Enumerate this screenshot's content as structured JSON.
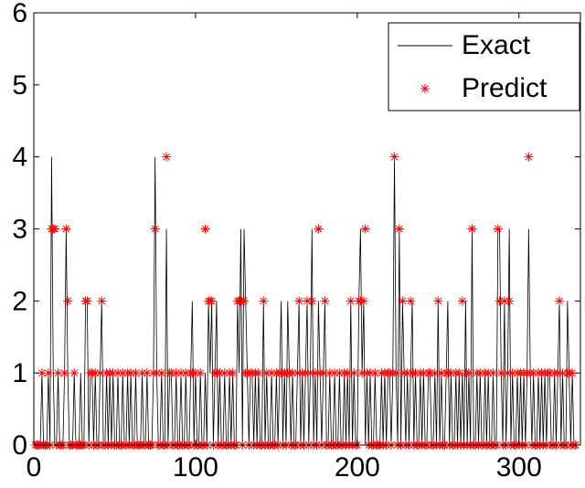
{
  "chart_data": {
    "type": "line-scatter",
    "x": [
      1,
      2,
      3,
      4,
      5,
      6,
      7,
      8,
      9,
      10,
      11,
      12,
      13,
      14,
      15,
      16,
      17,
      18,
      19,
      20,
      21,
      22,
      23,
      24,
      25,
      26,
      27,
      28,
      29,
      30,
      31,
      32,
      33,
      34,
      35,
      36,
      37,
      38,
      39,
      40,
      41,
      42,
      43,
      44,
      45,
      46,
      47,
      48,
      49,
      50,
      51,
      52,
      53,
      54,
      55,
      56,
      57,
      58,
      59,
      60,
      61,
      62,
      63,
      64,
      65,
      66,
      67,
      68,
      69,
      70,
      71,
      72,
      73,
      74,
      75,
      76,
      77,
      78,
      79,
      80,
      81,
      82,
      83,
      84,
      85,
      86,
      87,
      88,
      89,
      90,
      91,
      92,
      93,
      94,
      95,
      96,
      97,
      98,
      99,
      100,
      101,
      102,
      103,
      104,
      105,
      106,
      107,
      108,
      109,
      110,
      111,
      112,
      113,
      114,
      115,
      116,
      117,
      118,
      119,
      120,
      121,
      122,
      123,
      124,
      125,
      126,
      127,
      128,
      129,
      130,
      131,
      132,
      133,
      134,
      135,
      136,
      137,
      138,
      139,
      140,
      141,
      142,
      143,
      144,
      145,
      146,
      147,
      148,
      149,
      150,
      151,
      152,
      153,
      154,
      155,
      156,
      157,
      158,
      159,
      160,
      161,
      162,
      163,
      164,
      165,
      166,
      167,
      168,
      169,
      170,
      171,
      172,
      173,
      174,
      175,
      176,
      177,
      178,
      179,
      180,
      181,
      182,
      183,
      184,
      185,
      186,
      187,
      188,
      189,
      190,
      191,
      192,
      193,
      194,
      195,
      196,
      197,
      198,
      199,
      200,
      201,
      202,
      203,
      204,
      205,
      206,
      207,
      208,
      209,
      210,
      211,
      212,
      213,
      214,
      215,
      216,
      217,
      218,
      219,
      220,
      221,
      222,
      223,
      224,
      225,
      226,
      227,
      228,
      229,
      230,
      231,
      232,
      233,
      234,
      235,
      236,
      237,
      238,
      239,
      240,
      241,
      242,
      243,
      244,
      245,
      246,
      247,
      248,
      249,
      250,
      251,
      252,
      253,
      254,
      255,
      256,
      257,
      258,
      259,
      260,
      261,
      262,
      263,
      264,
      265,
      266,
      267,
      268,
      269,
      270,
      271,
      272,
      273,
      274,
      275,
      276,
      277,
      278,
      279,
      280,
      281,
      282,
      283,
      284,
      285,
      286,
      287,
      288,
      289,
      290,
      291,
      292,
      293,
      294,
      295,
      296,
      297,
      298,
      299,
      300,
      301,
      302,
      303,
      304,
      305,
      306,
      307,
      308,
      309,
      310,
      311,
      312,
      313,
      314,
      315,
      316,
      317,
      318,
      319,
      320,
      321,
      322,
      323,
      324,
      325,
      326,
      327,
      328,
      329,
      330,
      331,
      332,
      333,
      334,
      335
    ],
    "series": [
      {
        "name": "Exact",
        "color": "#000000",
        "style": "line",
        "values": [
          0,
          0,
          0,
          0,
          1,
          0,
          0,
          0,
          1,
          0,
          4,
          1,
          0,
          0,
          1,
          0,
          0,
          0,
          1,
          3,
          1,
          0,
          0,
          0,
          1,
          0,
          0,
          0,
          1,
          0,
          0,
          2,
          2,
          0,
          1,
          1,
          0,
          1,
          0,
          0,
          1,
          2,
          0,
          0,
          1,
          0,
          1,
          0,
          1,
          0,
          0,
          1,
          0,
          0,
          1,
          0,
          0,
          1,
          0,
          1,
          0,
          0,
          1,
          0,
          0,
          0,
          1,
          0,
          0,
          1,
          0,
          0,
          0,
          1,
          4,
          1,
          0,
          0,
          1,
          0,
          0,
          3,
          0,
          1,
          1,
          0,
          0,
          1,
          0,
          0,
          1,
          0,
          0,
          1,
          0,
          0,
          1,
          2,
          0,
          1,
          0,
          0,
          1,
          0,
          0,
          1,
          0,
          2,
          1,
          2,
          0,
          1,
          2,
          0,
          1,
          0,
          0,
          1,
          0,
          0,
          1,
          0,
          1,
          0,
          0,
          2,
          1,
          3,
          0,
          3,
          2,
          1,
          0,
          1,
          1,
          0,
          1,
          0,
          1,
          0,
          0,
          2,
          0,
          1,
          0,
          0,
          1,
          0,
          0,
          1,
          0,
          1,
          2,
          0,
          1,
          0,
          2,
          1,
          0,
          1,
          0,
          0,
          1,
          2,
          0,
          1,
          0,
          1,
          2,
          0,
          1,
          3,
          0,
          1,
          0,
          2,
          1,
          0,
          1,
          2,
          0,
          0,
          1,
          0,
          0,
          1,
          0,
          0,
          1,
          0,
          0,
          1,
          0,
          1,
          0,
          2,
          0,
          1,
          0,
          0,
          2,
          3,
          1,
          2,
          0,
          1,
          0,
          1,
          0,
          0,
          1,
          0,
          0,
          0,
          1,
          0,
          1,
          0,
          1,
          1,
          0,
          1,
          4,
          1,
          0,
          3,
          0,
          2,
          1,
          0,
          1,
          0,
          1,
          2,
          0,
          1,
          0,
          0,
          1,
          0,
          1,
          0,
          0,
          1,
          1,
          0,
          0,
          1,
          0,
          2,
          0,
          1,
          0,
          0,
          1,
          2,
          0,
          1,
          0,
          0,
          1,
          0,
          1,
          0,
          1,
          0,
          2,
          0,
          1,
          0,
          3,
          0,
          0,
          1,
          0,
          1,
          0,
          0,
          1,
          0,
          1,
          0,
          0,
          1,
          0,
          0,
          3,
          3,
          1,
          0,
          2,
          0,
          1,
          3,
          0,
          1,
          0,
          0,
          1,
          0,
          1,
          0,
          1,
          0,
          1,
          3,
          1,
          0,
          1,
          0,
          0,
          1,
          0,
          1,
          0,
          1,
          0,
          1,
          1,
          0,
          0,
          1,
          0,
          1,
          2,
          0,
          1,
          0,
          0,
          2,
          1,
          0,
          1,
          0,
          0
        ]
      },
      {
        "name": "Predict",
        "color": "#ff0000",
        "style": "star",
        "values": [
          0,
          0,
          0,
          0,
          1,
          0,
          0,
          0,
          1,
          0,
          3,
          3,
          3,
          0,
          1,
          0,
          0,
          0,
          1,
          3,
          2,
          0,
          0,
          0,
          1,
          0,
          0,
          0,
          0,
          0,
          0,
          2,
          2,
          0,
          1,
          1,
          0,
          1,
          0,
          0,
          1,
          2,
          0,
          0,
          1,
          0,
          1,
          0,
          1,
          0,
          0,
          1,
          0,
          0,
          1,
          0,
          0,
          1,
          0,
          1,
          0,
          0,
          1,
          0,
          0,
          0,
          1,
          0,
          0,
          1,
          0,
          0,
          0,
          1,
          3,
          1,
          0,
          0,
          1,
          0,
          0,
          4,
          0,
          1,
          1,
          0,
          0,
          1,
          0,
          0,
          1,
          0,
          0,
          1,
          0,
          0,
          1,
          1,
          0,
          1,
          0,
          0,
          1,
          0,
          0,
          3,
          0,
          2,
          2,
          2,
          0,
          1,
          1,
          0,
          1,
          0,
          0,
          1,
          0,
          0,
          1,
          0,
          1,
          0,
          0,
          2,
          2,
          2,
          0,
          2,
          1,
          1,
          0,
          1,
          1,
          0,
          1,
          0,
          1,
          0,
          0,
          2,
          0,
          1,
          0,
          0,
          1,
          0,
          0,
          1,
          0,
          1,
          1,
          0,
          1,
          0,
          1,
          1,
          0,
          1,
          0,
          0,
          1,
          2,
          0,
          1,
          0,
          1,
          2,
          0,
          1,
          2,
          0,
          1,
          0,
          3,
          1,
          0,
          1,
          2,
          0,
          0,
          1,
          0,
          0,
          1,
          0,
          0,
          1,
          0,
          0,
          1,
          0,
          1,
          0,
          2,
          0,
          1,
          0,
          0,
          2,
          2,
          1,
          2,
          3,
          1,
          0,
          1,
          0,
          0,
          1,
          0,
          0,
          0,
          1,
          0,
          1,
          0,
          1,
          1,
          0,
          1,
          4,
          1,
          0,
          3,
          0,
          2,
          1,
          0,
          1,
          0,
          2,
          1,
          0,
          1,
          0,
          0,
          1,
          0,
          1,
          0,
          0,
          1,
          1,
          0,
          0,
          1,
          0,
          2,
          0,
          1,
          0,
          0,
          1,
          1,
          0,
          1,
          0,
          0,
          1,
          0,
          1,
          0,
          2,
          0,
          1,
          0,
          1,
          0,
          3,
          0,
          0,
          1,
          0,
          1,
          0,
          0,
          1,
          0,
          1,
          0,
          0,
          1,
          0,
          0,
          3,
          2,
          1,
          0,
          2,
          0,
          1,
          2,
          0,
          1,
          0,
          0,
          1,
          0,
          1,
          0,
          1,
          0,
          1,
          4,
          1,
          0,
          1,
          0,
          0,
          1,
          0,
          1,
          0,
          1,
          0,
          1,
          1,
          0,
          0,
          1,
          0,
          1,
          2,
          0,
          1,
          0,
          0,
          1,
          1,
          0,
          1,
          0,
          0
        ]
      }
    ],
    "xlim": [
      0,
      338
    ],
    "xticks": [
      0,
      100,
      200,
      300
    ],
    "ylim": [
      0,
      6
    ],
    "yticks": [
      0,
      1,
      2,
      3,
      4,
      5,
      6
    ],
    "legend": "upper right"
  }
}
